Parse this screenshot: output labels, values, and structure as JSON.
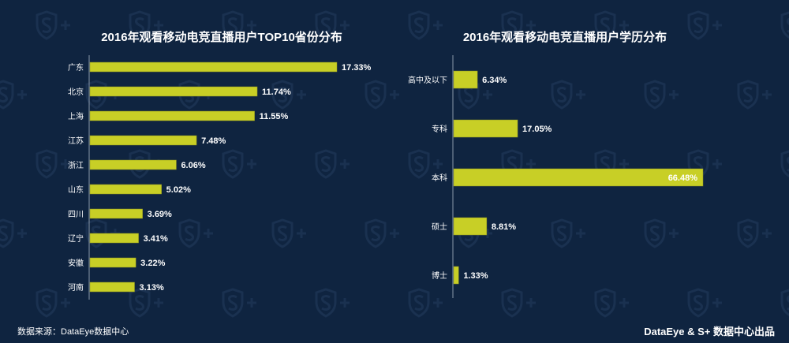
{
  "chart_data": [
    {
      "type": "bar",
      "orientation": "horizontal",
      "title": "2016年观看移动电竞直播用户TOP10省份分布",
      "categories": [
        "广东",
        "北京",
        "上海",
        "江苏",
        "浙江",
        "山东",
        "四川",
        "辽宁",
        "安徽",
        "河南"
      ],
      "values": [
        17.33,
        11.74,
        11.55,
        7.48,
        6.06,
        5.02,
        3.69,
        3.41,
        3.22,
        3.13
      ],
      "labels": [
        "17.33%",
        "11.74%",
        "11.55%",
        "7.48%",
        "6.06%",
        "5.02%",
        "3.69%",
        "3.41%",
        "3.22%",
        "3.13%"
      ],
      "xlabel": "",
      "ylabel": "",
      "color": "#c8cf26"
    },
    {
      "type": "bar",
      "orientation": "horizontal",
      "title": "2016年观看移动电竞直播用户学历分布",
      "categories": [
        "高中及以下",
        "专科",
        "本科",
        "硕士",
        "博士"
      ],
      "values": [
        6.34,
        17.05,
        66.48,
        8.81,
        1.33
      ],
      "labels": [
        "6.34%",
        "17.05%",
        "66.48%",
        "8.81%",
        "1.33%"
      ],
      "xlabel": "",
      "ylabel": "",
      "color": "#c8cf26"
    }
  ],
  "footer": {
    "source": "数据来源：DataEye数据中心",
    "brand": "DataEye & S+ 数据中心出品"
  },
  "watermark": "S+"
}
